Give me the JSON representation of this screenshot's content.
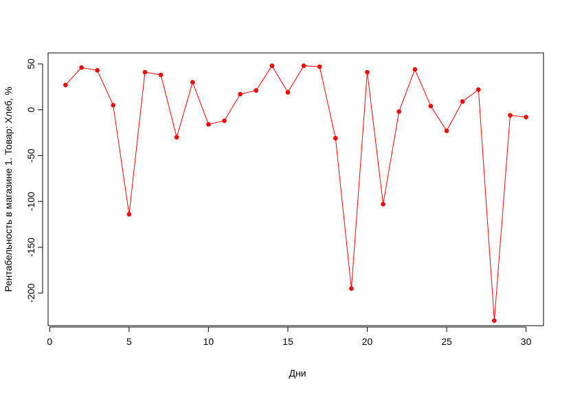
{
  "chart_data": {
    "type": "line",
    "xlabel": "Дни",
    "ylabel": "Рентабельность в магазине 1. Товар: Хлеб, %",
    "xlim": [
      -0.1,
      31.1
    ],
    "ylim": [
      -235.5,
      62
    ],
    "x_ticks": [
      0,
      5,
      10,
      15,
      20,
      25,
      30
    ],
    "y_ticks": [
      50,
      0,
      -50,
      -100,
      -150,
      -200
    ],
    "series": [
      {
        "color": "#ff0000",
        "x": [
          1,
          2,
          3,
          4,
          5,
          6,
          7,
          8,
          9,
          10,
          11,
          12,
          13,
          14,
          15,
          16,
          17,
          18,
          19,
          20,
          21,
          22,
          23,
          24,
          25,
          26,
          27,
          28,
          29,
          30
        ],
        "y": [
          27,
          46,
          43,
          5,
          -114,
          41,
          38,
          -30,
          30,
          -16,
          -12,
          17,
          21,
          48,
          19,
          48,
          47,
          -31,
          -195,
          41,
          -103,
          -2,
          44,
          4,
          -23,
          9,
          22,
          -230,
          -6,
          -8
        ]
      }
    ]
  }
}
